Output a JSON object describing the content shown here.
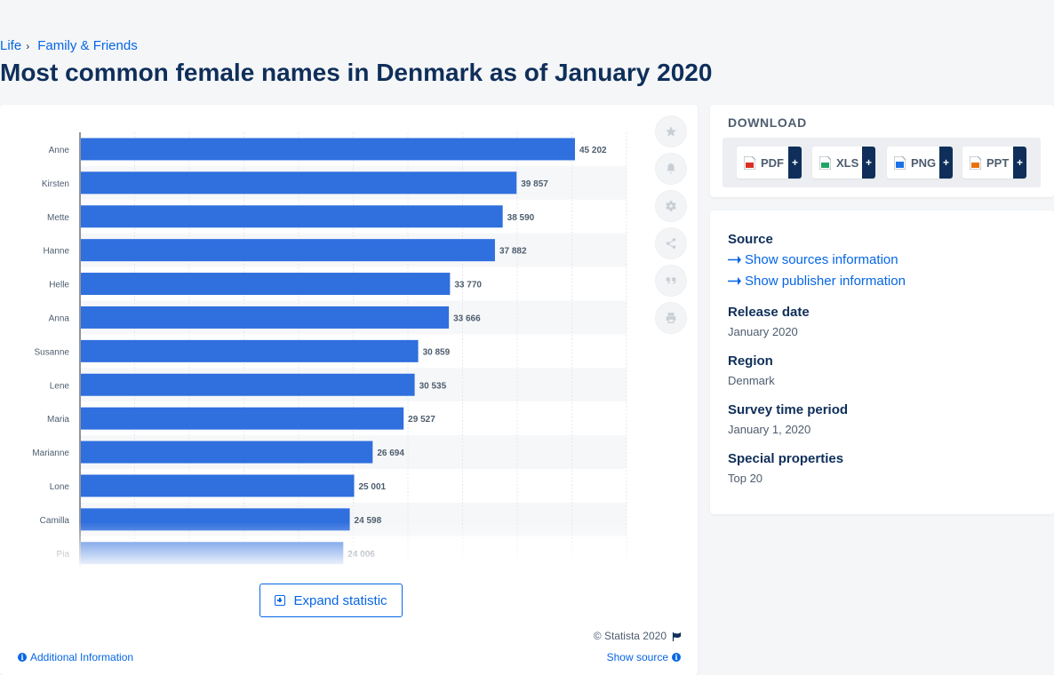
{
  "breadcrumb": {
    "items": [
      "Life",
      "Family & Friends"
    ],
    "separator": "›"
  },
  "page": {
    "title": "Most common female names in Denmark as of January 2020"
  },
  "chart_data": {
    "type": "bar",
    "orientation": "horizontal",
    "categories": [
      "Anne",
      "Kirsten",
      "Mette",
      "Hanne",
      "Helle",
      "Anna",
      "Susanne",
      "Lene",
      "Maria",
      "Marianne",
      "Lone",
      "Camilla",
      "Pia"
    ],
    "values": [
      45202,
      39857,
      38590,
      37882,
      33770,
      33666,
      30859,
      30535,
      29527,
      26694,
      25001,
      24598,
      24006
    ],
    "data_labels": [
      "45 202",
      "39 857",
      "38 590",
      "37 882",
      "33 770",
      "33 666",
      "30 859",
      "30 535",
      "29 527",
      "26 694",
      "25 001",
      "24 598",
      "24 006"
    ],
    "xlim": [
      0,
      50000
    ],
    "grid": true,
    "bar_color": "#2f6fde",
    "label_color": "#4d5d6e",
    "stripe_color": "#f6f7f9",
    "title": "",
    "xlabel": "",
    "ylabel": ""
  },
  "tools": {
    "icons": [
      "star-icon",
      "bell-icon",
      "gear-icon",
      "share-icon",
      "quote-icon",
      "print-icon"
    ]
  },
  "expand": {
    "label": "Expand statistic"
  },
  "footer": {
    "copyright": "© Statista 2020",
    "additional_info": "Additional Information",
    "show_source": "Show source"
  },
  "download": {
    "title": "DOWNLOAD",
    "buttons": [
      {
        "label": "PDF",
        "plus": "+",
        "icon": "pdf-file-icon",
        "color": "#d93025"
      },
      {
        "label": "XLS",
        "plus": "+",
        "icon": "xls-file-icon",
        "color": "#21a366"
      },
      {
        "label": "PNG",
        "plus": "+",
        "icon": "png-file-icon",
        "color": "#1a73e8"
      },
      {
        "label": "PPT",
        "plus": "+",
        "icon": "ppt-file-icon",
        "color": "#e8710a"
      }
    ]
  },
  "meta": {
    "source_heading": "Source",
    "show_sources": "Show sources information",
    "show_publisher": "Show publisher information",
    "release_date_heading": "Release date",
    "release_date": "January 2020",
    "region_heading": "Region",
    "region": "Denmark",
    "survey_heading": "Survey time period",
    "survey_period": "January 1, 2020",
    "special_heading": "Special properties",
    "special": "Top 20"
  }
}
